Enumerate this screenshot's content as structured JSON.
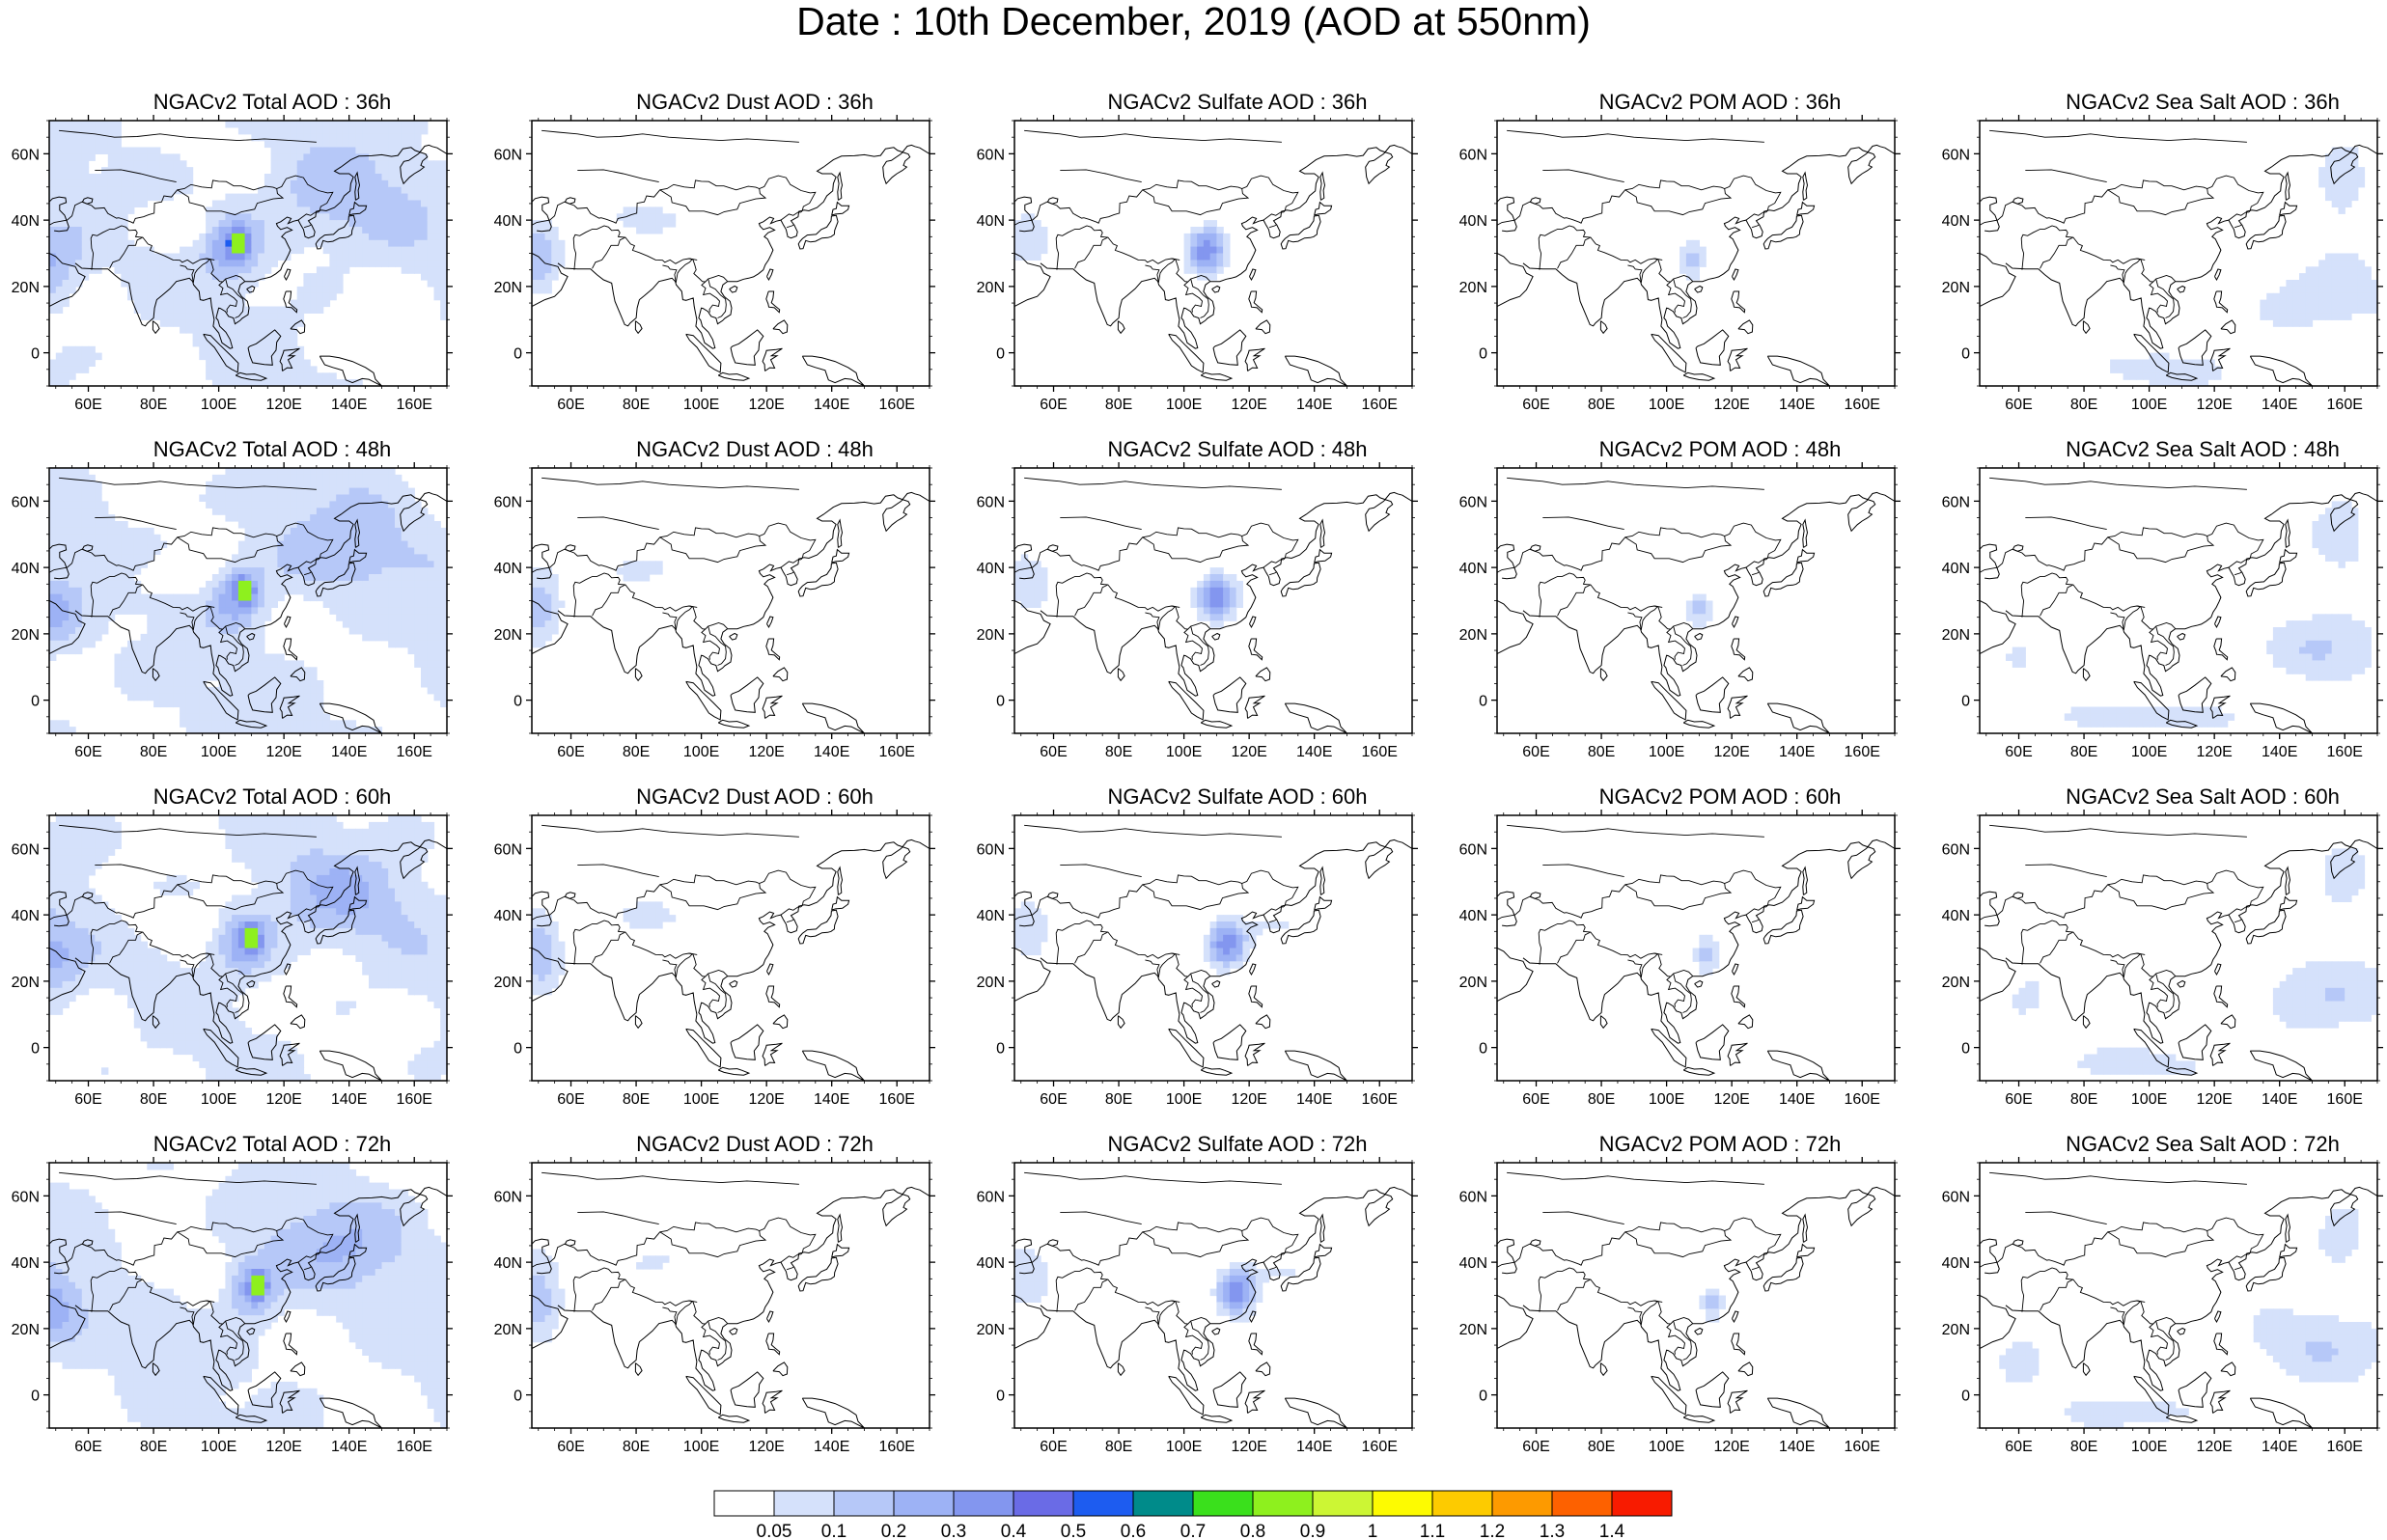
{
  "title": "Date : 10th December, 2019 (AOD at 550nm)",
  "columns": [
    "Total",
    "Dust",
    "Sulfate",
    "POM",
    "Sea Salt"
  ],
  "rows": [
    "36h",
    "48h",
    "60h",
    "72h"
  ],
  "panel_titles": [
    [
      "NGACv2 Total AOD : 36h",
      "NGACv2 Dust AOD : 36h",
      "NGACv2 Sulfate AOD : 36h",
      "NGACv2 POM AOD : 36h",
      "NGACv2 Sea Salt AOD : 36h"
    ],
    [
      "NGACv2 Total AOD : 48h",
      "NGACv2 Dust AOD : 48h",
      "NGACv2 Sulfate AOD : 48h",
      "NGACv2 POM AOD : 48h",
      "NGACv2 Sea Salt AOD : 48h"
    ],
    [
      "NGACv2 Total AOD : 60h",
      "NGACv2 Dust AOD : 60h",
      "NGACv2 Sulfate AOD : 60h",
      "NGACv2 POM AOD : 60h",
      "NGACv2 Sea Salt AOD : 60h"
    ],
    [
      "NGACv2 Total AOD : 72h",
      "NGACv2 Dust AOD : 72h",
      "NGACv2 Sulfate AOD : 72h",
      "NGACv2 POM AOD : 72h",
      "NGACv2 Sea Salt  AOD : 72h"
    ]
  ],
  "map": {
    "lon_range": [
      48,
      170
    ],
    "lat_range": [
      -10,
      70
    ],
    "x_ticks": [
      "60E",
      "80E",
      "100E",
      "120E",
      "140E",
      "160E"
    ],
    "x_tick_values": [
      60,
      80,
      100,
      120,
      140,
      160
    ],
    "y_ticks": [
      "60N",
      "40N",
      "20N",
      "0"
    ],
    "y_tick_values": [
      60,
      40,
      20,
      0
    ]
  },
  "colorbar": {
    "labels": [
      "0.05",
      "0.1",
      "0.2",
      "0.3",
      "0.4",
      "0.5",
      "0.6",
      "0.7",
      "0.8",
      "0.9",
      "1",
      "1.1",
      "1.2",
      "1.3",
      "1.4"
    ],
    "colors": [
      "#ffffff",
      "#d5e1fb",
      "#b6c8f8",
      "#9db2f5",
      "#8396ef",
      "#6a6be6",
      "#1d5cf0",
      "#008b8a",
      "#3ae01c",
      "#8ef01e",
      "#ccf634",
      "#fdfb01",
      "#fdcb00",
      "#fd9a00",
      "#fd6100",
      "#f81b00"
    ]
  },
  "chart_data": {
    "type": "heatmap",
    "title": "Date : 10th December, 2019 (AOD at 550nm)",
    "x_range_lon": [
      48,
      170
    ],
    "y_range_lat": [
      -10,
      70
    ],
    "color_levels": [
      0.05,
      0.1,
      0.2,
      0.3,
      0.4,
      0.5,
      0.6,
      0.7,
      0.8,
      0.9,
      1,
      1.1,
      1.2,
      1.3,
      1.4
    ],
    "panels": [
      {
        "title": "NGACv2 Total AOD : 36h",
        "max_level": 0.8,
        "hotspot": "central China ~106E 30N"
      },
      {
        "title": "NGACv2 Dust AOD : 36h",
        "max_level": 0.3,
        "hotspot": "Arabian Peninsula / Taklamakan"
      },
      {
        "title": "NGACv2 Sulfate AOD : 36h",
        "max_level": 0.5,
        "hotspot": "Sichuan basin ~106E 30N"
      },
      {
        "title": "NGACv2 POM AOD : 36h",
        "max_level": 0.1,
        "hotspot": "southern China / Indochina"
      },
      {
        "title": "NGACv2 Sea Salt AOD : 36h",
        "max_level": 0.1,
        "hotspot": "western Pacific"
      },
      {
        "title": "NGACv2 Total AOD : 48h",
        "max_level": 0.8,
        "hotspot": "central China ~107E 33N"
      },
      {
        "title": "NGACv2 Dust AOD : 48h",
        "max_level": 0.3,
        "hotspot": "Arabian Peninsula"
      },
      {
        "title": "NGACv2 Sulfate AOD : 48h",
        "max_level": 0.7,
        "hotspot": "central China ~107E 30N"
      },
      {
        "title": "NGACv2 POM AOD : 48h",
        "max_level": 0.1,
        "hotspot": "southern China"
      },
      {
        "title": "NGACv2 Sea Salt AOD : 48h",
        "max_level": 0.1,
        "hotspot": "western Pacific"
      },
      {
        "title": "NGACv2 Total AOD : 60h",
        "max_level": 0.8,
        "hotspot": "eastern China ~110-120E 30-40N"
      },
      {
        "title": "NGACv2 Dust AOD : 60h",
        "max_level": 0.3,
        "hotspot": "Arabian Peninsula"
      },
      {
        "title": "NGACv2 Sulfate AOD : 60h",
        "max_level": 0.5,
        "hotspot": "eastern China"
      },
      {
        "title": "NGACv2 POM AOD : 60h",
        "max_level": 0.1,
        "hotspot": "eastern China"
      },
      {
        "title": "NGACv2 Sea Salt AOD : 60h",
        "max_level": 0.1,
        "hotspot": "western Pacific"
      },
      {
        "title": "NGACv2 Total AOD : 72h",
        "max_level": 0.8,
        "hotspot": "eastern China ~110E 30-40N"
      },
      {
        "title": "NGACv2 Dust AOD : 72h",
        "max_level": 0.3,
        "hotspot": "Arabian Peninsula"
      },
      {
        "title": "NGACv2 Sulfate AOD : 72h",
        "max_level": 0.5,
        "hotspot": "eastern China"
      },
      {
        "title": "NGACv2 POM AOD : 72h",
        "max_level": 0.2,
        "hotspot": "eastern China"
      },
      {
        "title": "NGACv2 Sea Salt  AOD : 72h",
        "max_level": 0.1,
        "hotspot": "western Pacific"
      }
    ]
  }
}
